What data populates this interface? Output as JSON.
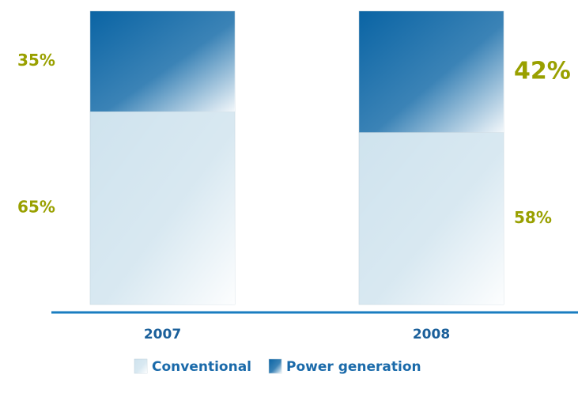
{
  "chart_data": {
    "type": "stacked_bar",
    "categories": [
      "2007",
      "2008"
    ],
    "series": [
      {
        "name": "Conventional",
        "color": "#cfe3ee",
        "values": [
          65,
          58
        ],
        "value_labels": [
          "65%",
          "58%"
        ]
      },
      {
        "name": "Power generation",
        "color": "#0a64a4",
        "values": [
          35,
          42
        ],
        "value_labels": [
          "35%",
          "42%"
        ]
      }
    ],
    "ylim": [
      0,
      100
    ]
  }
}
